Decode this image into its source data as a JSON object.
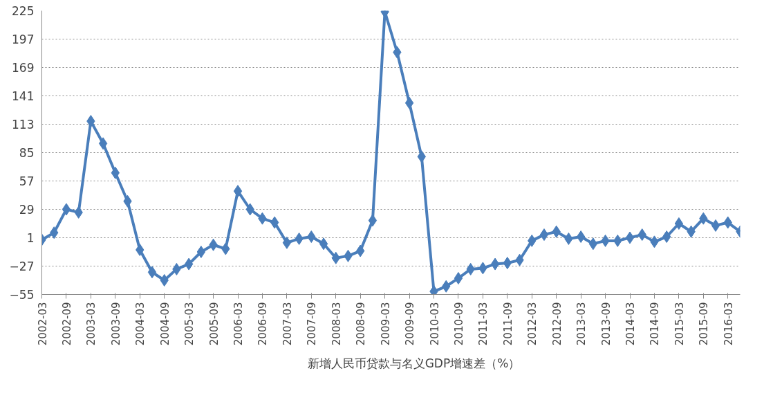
{
  "chart_data": {
    "type": "line",
    "categories": [
      "2002-03",
      null,
      "2002-09",
      null,
      "2003-03",
      null,
      "2003-09",
      null,
      "2004-03",
      null,
      "2004-09",
      null,
      "2005-03",
      null,
      "2005-09",
      null,
      "2006-03",
      null,
      "2006-09",
      null,
      "2007-03",
      null,
      "2007-09",
      null,
      "2008-03",
      null,
      "2008-09",
      null,
      "2009-03",
      null,
      "2009-09",
      null,
      "2010-03",
      null,
      "2010-09",
      null,
      "2011-03",
      null,
      "2011-09",
      null,
      "2012-03",
      null,
      "2012-09",
      null,
      "2013-03",
      null,
      "2013-09",
      null,
      "2014-03",
      null,
      "2014-09",
      null,
      "2015-03",
      null,
      "2015-09",
      null,
      "2016-03",
      null
    ],
    "series": [
      {
        "name": "新增人民币贷款与名义GDP增速差（%）",
        "color": "#4a7ebb",
        "values": [
          -1,
          6,
          29,
          26,
          116,
          94,
          65,
          37,
          -11,
          -33,
          -41,
          -30,
          -25,
          -13,
          -6,
          -10,
          47,
          29,
          20,
          16,
          -4,
          0,
          2,
          -5,
          -19,
          -17,
          -12,
          18,
          224,
          184,
          134,
          81,
          -52,
          -47,
          -39,
          -30,
          -29,
          -25,
          -24,
          -21,
          -2,
          4,
          7,
          0,
          2,
          -5,
          -2,
          -2,
          1,
          4,
          -3,
          2,
          15,
          7,
          20,
          13,
          16,
          7
        ]
      }
    ],
    "ylim": [
      -55,
      225
    ],
    "yticks": [
      -55,
      -27,
      1,
      29,
      57,
      85,
      113,
      141,
      169,
      197,
      225
    ],
    "grid": "y",
    "legend": "bottom",
    "marker": "diamond",
    "line_style": "solid"
  }
}
